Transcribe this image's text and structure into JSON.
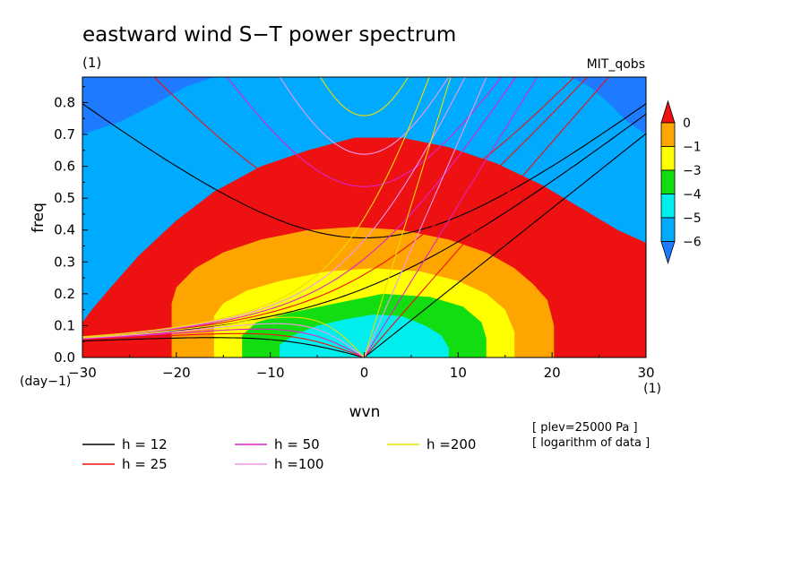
{
  "chart_data": {
    "type": "heatmap",
    "title": "eastward wind S−T power spectrum",
    "subtitle_left": "(1)",
    "subtitle_right": "MIT_qobs",
    "xlabel": "wvn",
    "ylabel": "freq",
    "x_unit": "(1)",
    "y_unit": "(day−1)",
    "xlim": [
      -30,
      30
    ],
    "ylim": [
      0,
      0.88
    ],
    "x_ticks": [
      -30,
      -20,
      -10,
      0,
      10,
      20,
      30
    ],
    "x_tick_labels": [
      "−30",
      "−20",
      "−10",
      "0",
      "10",
      "20",
      "30"
    ],
    "y_ticks": [
      0.0,
      0.1,
      0.2,
      0.3,
      0.4,
      0.5,
      0.6,
      0.7,
      0.8
    ],
    "y_tick_labels": [
      "0.0",
      "0.1",
      "0.2",
      "0.3",
      "0.4",
      "0.5",
      "0.6",
      "0.7",
      "0.8"
    ],
    "colorbar": {
      "levels": [
        0,
        -1,
        -3,
        -4,
        -5,
        -6
      ],
      "level_labels": [
        "0",
        "−1",
        "−3",
        "−4",
        "−5",
        "−6"
      ],
      "colors": [
        "#ee1111",
        "#ffa500",
        "#ffff00",
        "#11dd11",
        "#00eeee",
        "#00aaff",
        "#1e7bff"
      ]
    },
    "spectrum_regions": [
      {
        "level": "0 to -1",
        "color": "#ee1111",
        "peak_wvn": 2,
        "max_freq": 0.14,
        "wvn_range": [
          -9,
          9
        ]
      },
      {
        "level": "-1 to -3",
        "color": "#ffa500",
        "peak_wvn": 2,
        "max_freq": 0.2,
        "wvn_range": [
          -13,
          13
        ]
      },
      {
        "level": "-3 to -4",
        "color": "#ffff00",
        "peak_wvn": 2,
        "max_freq": 0.28,
        "wvn_range": [
          -16,
          16
        ]
      },
      {
        "level": "-4 to -5",
        "color": "#11dd11",
        "peak_wvn": 0,
        "max_freq": 0.41,
        "wvn_range": [
          -21,
          20
        ]
      },
      {
        "level": "-5 to -6",
        "color": "#00eeee",
        "peak_wvn": 0,
        "max_freq": 0.69,
        "wvn_range": [
          -30,
          30
        ]
      }
    ],
    "dispersion_curves": [
      {
        "name": "h = 12",
        "equivalent_depth": 12,
        "color": "#000000"
      },
      {
        "name": "h = 25",
        "equivalent_depth": 25,
        "color": "#ee1111"
      },
      {
        "name": "h = 50",
        "equivalent_depth": 50,
        "color": "#dd22cc"
      },
      {
        "name": "h =100",
        "equivalent_depth": 100,
        "color": "#ee99ee"
      },
      {
        "name": "h =200",
        "equivalent_depth": 200,
        "color": "#eedd00"
      }
    ],
    "annotations": [
      "[ plev=25000 Pa ]",
      "[ logarithm of data ]"
    ],
    "grid": false,
    "legend_position": "bottom-left"
  }
}
